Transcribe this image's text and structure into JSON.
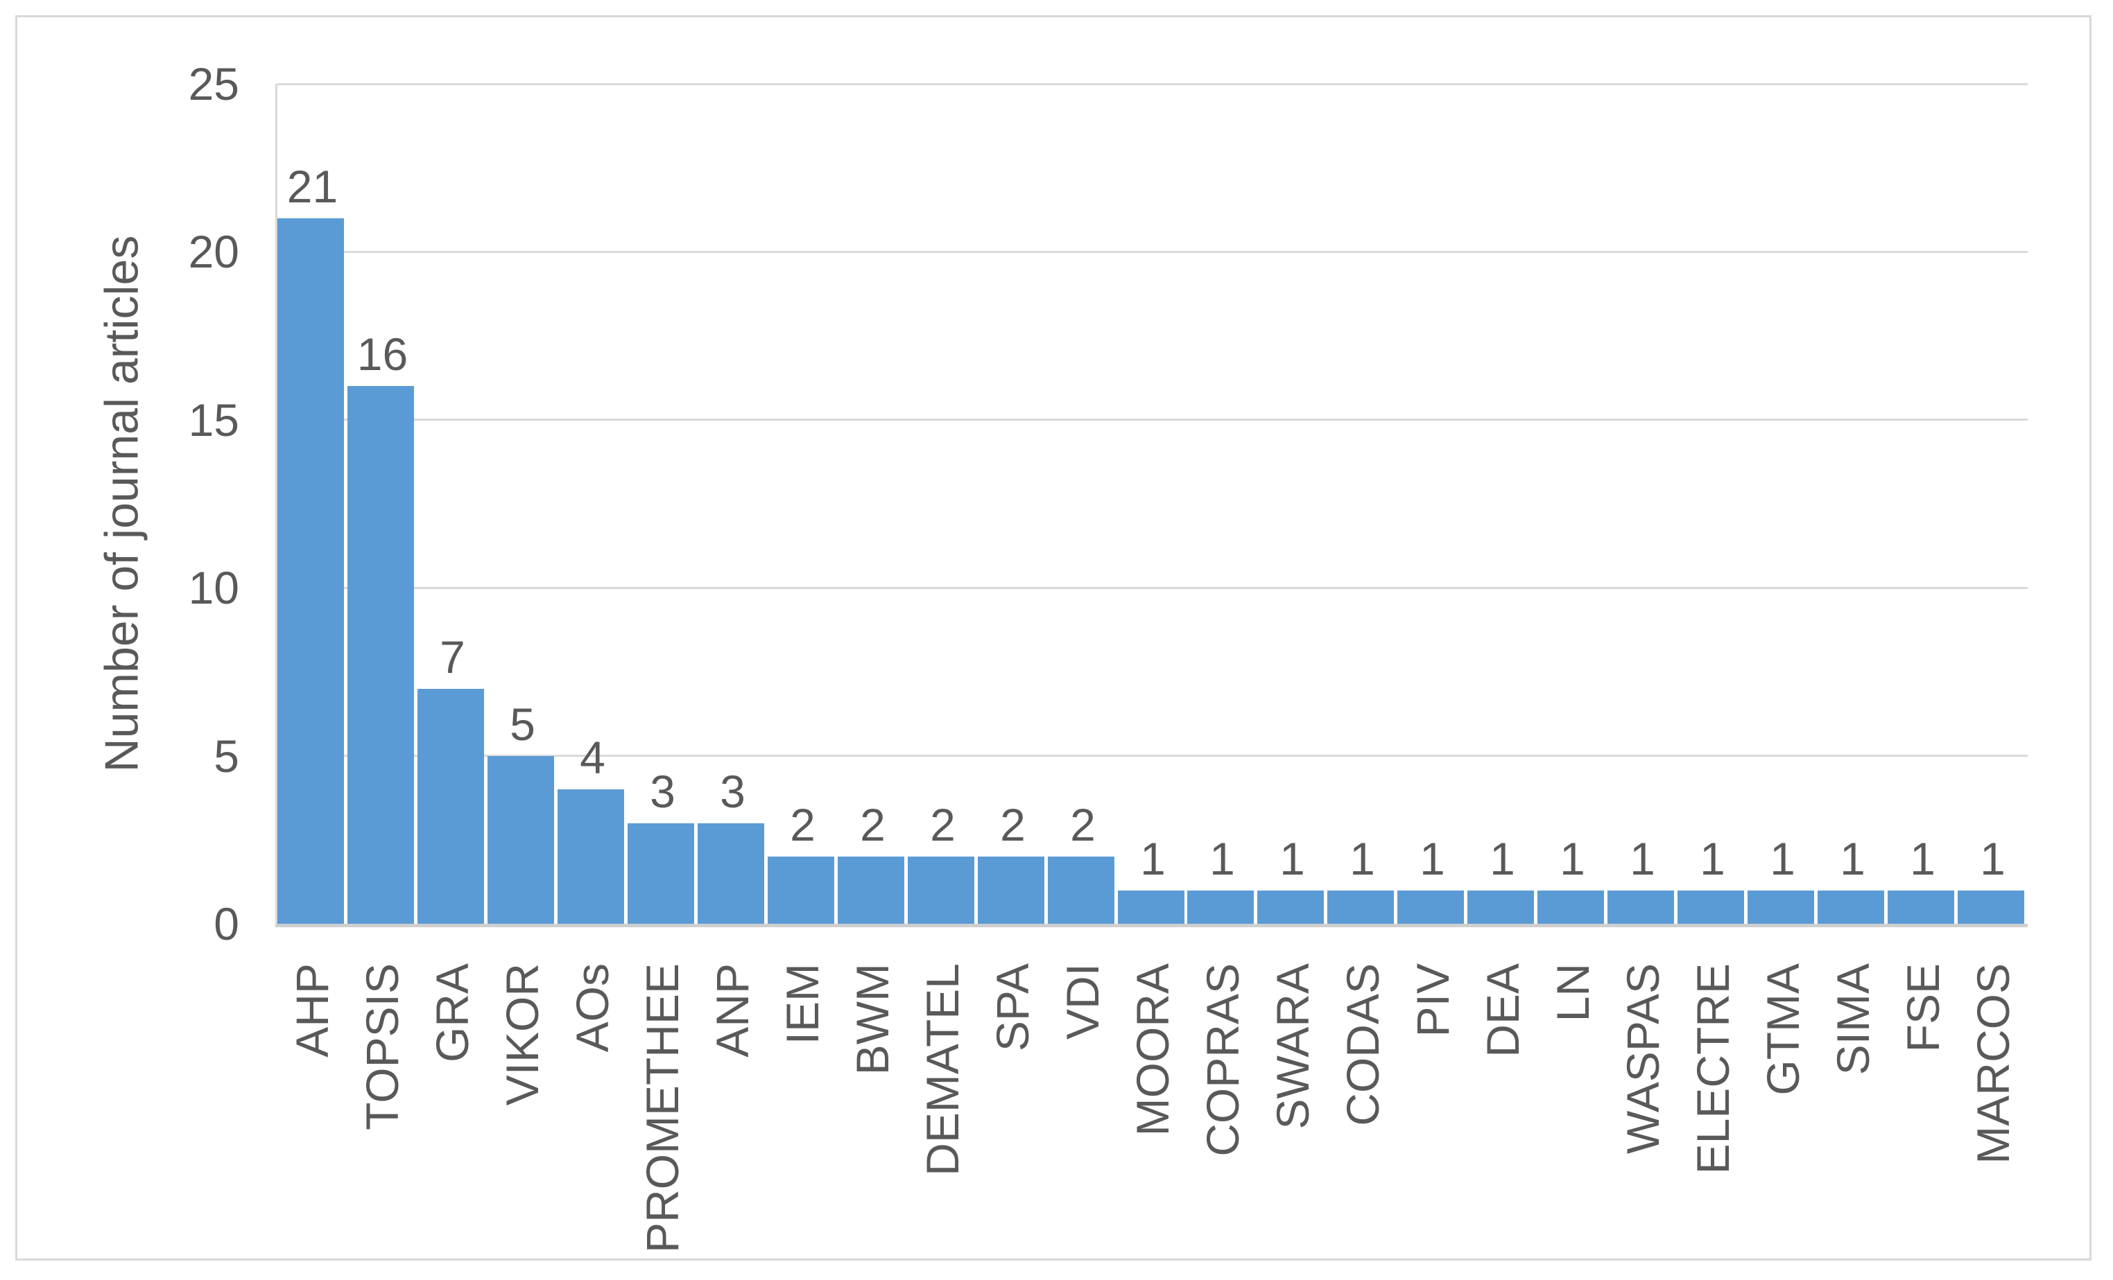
{
  "chart_data": {
    "type": "bar",
    "title": "",
    "xlabel": "",
    "ylabel": "Number of journal articles",
    "categories": [
      "AHP",
      "TOPSIS",
      "GRA",
      "VIKOR",
      "AOs",
      "PROMETHEE",
      "ANP",
      "IEM",
      "BWM",
      "DEMATEL",
      "SPA",
      "VDI",
      "MOORA",
      "COPRAS",
      "SWARA",
      "CODAS",
      "PIV",
      "DEA",
      "LN",
      "WASPAS",
      "ELECTRE",
      "GTMA",
      "SIMA",
      "FSE",
      "MARCOS"
    ],
    "values": [
      21,
      16,
      7,
      5,
      4,
      3,
      3,
      2,
      2,
      2,
      2,
      2,
      1,
      1,
      1,
      1,
      1,
      1,
      1,
      1,
      1,
      1,
      1,
      1,
      1
    ],
    "data_labels": [
      21,
      16,
      7,
      5,
      4,
      3,
      3,
      2,
      2,
      2,
      2,
      2,
      1,
      1,
      1,
      1,
      1,
      1,
      1,
      1,
      1,
      1,
      1,
      1,
      1
    ],
    "ylim": [
      0,
      25
    ],
    "yticks": [
      0,
      5,
      10,
      15,
      20,
      25
    ],
    "grid": true,
    "legend": "none",
    "colors": {
      "bar": "#5b9bd5",
      "gridline": "#d9d9d9",
      "axis_line": "#cfcfcf",
      "text": "#595959",
      "outer_border": "#d9d9d9",
      "background": "#ffffff"
    }
  }
}
